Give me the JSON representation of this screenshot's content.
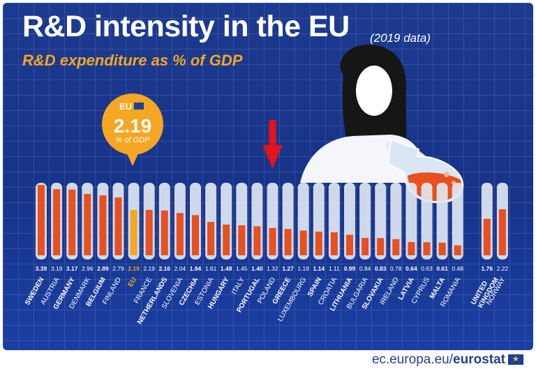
{
  "header": {
    "title": "R&D intensity in the EU",
    "data_year": "(2019 data)",
    "subtitle": "R&D expenditure as % of GDP"
  },
  "footer": {
    "source_prefix": "ec.europa.eu/",
    "source_brand": "eurostat"
  },
  "callout": {
    "label": "EU",
    "value": "2.19",
    "unit": "% of GDP"
  },
  "colors": {
    "background": "#1c3a8f",
    "bar": "#e8501d",
    "eu_bar": "#f5a623",
    "title": "#ffffff",
    "subtitle": "#f5a623",
    "tube": "#dfe7f3",
    "arrow": "#e3141b"
  },
  "chart_data": {
    "type": "bar",
    "title": "R&D intensity in the EU",
    "subtitle": "R&D expenditure as % of GDP",
    "ylabel": "% of GDP",
    "xlabel": "",
    "ylim": [
      0,
      3.5
    ],
    "highlight": "EU",
    "categories": [
      "SWEDEN",
      "AUSTRIA",
      "GERMANY",
      "DENMARK",
      "BELGIUM",
      "FINLAND",
      "EU",
      "FRANCE",
      "NETHERLANDS",
      "SLOVENIA",
      "CZECHIA",
      "ESTONIA",
      "HUNGARY",
      "ITALY",
      "PORTUGAL",
      "POLAND",
      "GREECE",
      "LUXEMBOURG",
      "SPAIN",
      "CROATIA",
      "LITHUANIA",
      "BULGARIA",
      "SLOVAKIA",
      "IRELAND",
      "LATVIA",
      "CYPRUS",
      "MALTA",
      "ROMANIA",
      "UNITED KINGDOM",
      "NORWAY"
    ],
    "values": [
      3.39,
      3.19,
      3.17,
      2.96,
      2.89,
      2.79,
      2.19,
      2.19,
      2.16,
      2.04,
      1.94,
      1.61,
      1.48,
      1.45,
      1.4,
      1.32,
      1.27,
      1.19,
      1.14,
      1.11,
      0.99,
      0.84,
      0.83,
      0.78,
      0.64,
      0.63,
      0.61,
      0.48,
      1.76,
      2.22
    ],
    "value_labels": [
      "3.39",
      "3.19",
      "3.17",
      "2.96",
      "2.89",
      "2.79",
      "2.19",
      "2.19",
      "2.16",
      "2.04",
      "1.94",
      "1.61",
      "1.48",
      "1.45",
      "1.40",
      "1.32",
      "1.27",
      "1.19",
      "1.14",
      "1.11",
      "0.99",
      "0.84",
      "0.83",
      "0.78",
      "0.64",
      "0.63",
      "0.61",
      "0.48",
      "1.76",
      "2.22"
    ],
    "bold_labels": [
      "SWEDEN",
      "GERMANY",
      "BELGIUM",
      "EU",
      "NETHERLANDS",
      "CZECHIA",
      "HUNGARY",
      "PORTUGAL",
      "GREECE",
      "SPAIN",
      "LITHUANIA",
      "SLOVAKIA",
      "LATVIA",
      "MALTA",
      "UNITED KINGDOM"
    ],
    "separate_group": [
      "UNITED KINGDOM",
      "NORWAY"
    ],
    "arrow_marker": "POLAND"
  }
}
